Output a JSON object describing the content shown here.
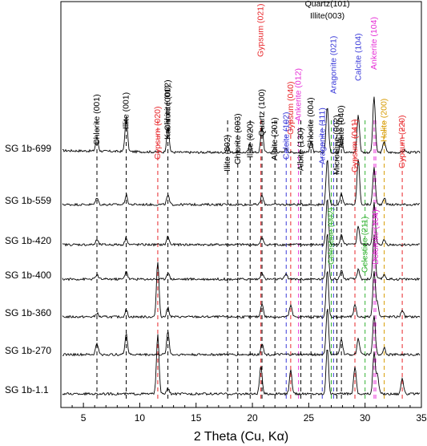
{
  "chart_data": {
    "type": "line",
    "title": "",
    "xlabel": "2 Theta (Cu, Kα)",
    "ylabel": "",
    "xlim": [
      3,
      35
    ],
    "xticks": [
      5,
      10,
      15,
      20,
      25,
      30,
      35
    ],
    "series": [
      {
        "name": "SG 1b-699",
        "peaks": [
          [
            6.2,
            0.3
          ],
          [
            8.8,
            0.75
          ],
          [
            12.5,
            0.55
          ],
          [
            17.8,
            0.12
          ],
          [
            19.8,
            0.18
          ],
          [
            20.85,
            0.55
          ],
          [
            22.0,
            0.12
          ],
          [
            23.0,
            0.1
          ],
          [
            25.2,
            0.25
          ],
          [
            26.65,
            1.0
          ],
          [
            27.9,
            0.35
          ],
          [
            29.4,
            0.8
          ],
          [
            30.8,
            1.2
          ],
          [
            31.7,
            0.25
          ],
          [
            33.5,
            0.05
          ]
        ]
      },
      {
        "name": "SG 1b-559",
        "peaks": [
          [
            6.2,
            0.15
          ],
          [
            8.8,
            0.2
          ],
          [
            12.5,
            0.2
          ],
          [
            20.85,
            0.2
          ],
          [
            26.65,
            1.0
          ],
          [
            27.9,
            0.25
          ],
          [
            29.4,
            1.0
          ],
          [
            30.8,
            0.8
          ],
          [
            31.7,
            0.15
          ]
        ]
      },
      {
        "name": "SG 1b-420",
        "peaks": [
          [
            6.2,
            0.1
          ],
          [
            8.8,
            0.15
          ],
          [
            12.5,
            0.18
          ],
          [
            20.85,
            0.15
          ],
          [
            26.65,
            1.0
          ],
          [
            27.9,
            0.2
          ],
          [
            29.4,
            0.4
          ],
          [
            30.8,
            0.9
          ],
          [
            31.7,
            0.1
          ]
        ]
      },
      {
        "name": "SG 1b-400",
        "peaks": [
          [
            6.2,
            0.1
          ],
          [
            8.8,
            0.18
          ],
          [
            12.5,
            0.15
          ],
          [
            20.85,
            0.15
          ],
          [
            23.0,
            0.12
          ],
          [
            26.65,
            1.0
          ],
          [
            27.9,
            0.2
          ],
          [
            29.4,
            0.2
          ],
          [
            30.8,
            0.95
          ],
          [
            31.7,
            0.1
          ]
        ]
      },
      {
        "name": "SG 1b-360",
        "peaks": [
          [
            6.2,
            0.08
          ],
          [
            8.8,
            0.15
          ],
          [
            11.6,
            1.2
          ],
          [
            12.5,
            0.2
          ],
          [
            20.85,
            0.3
          ],
          [
            23.4,
            0.25
          ],
          [
            26.65,
            1.0
          ],
          [
            29.1,
            0.25
          ],
          [
            30.8,
            1.0
          ],
          [
            31.1,
            0.3
          ],
          [
            33.3,
            0.15
          ]
        ]
      },
      {
        "name": "SG 1b-270",
        "peaks": [
          [
            6.2,
            0.25
          ],
          [
            8.8,
            0.45
          ],
          [
            12.5,
            0.5
          ],
          [
            20.85,
            0.25
          ],
          [
            26.65,
            1.0
          ],
          [
            27.9,
            0.35
          ],
          [
            29.4,
            0.35
          ],
          [
            30.8,
            0.85
          ],
          [
            31.7,
            0.15
          ]
        ]
      },
      {
        "name": "SG 1b-1.1",
        "peaks": [
          [
            11.6,
            1.3
          ],
          [
            12.5,
            0.12
          ],
          [
            20.75,
            0.6
          ],
          [
            23.4,
            0.5
          ],
          [
            26.65,
            1.0
          ],
          [
            29.1,
            0.6
          ],
          [
            30.8,
            0.9
          ],
          [
            31.1,
            0.4
          ],
          [
            33.3,
            0.35
          ]
        ]
      }
    ],
    "peak_labels": [
      {
        "text": "Chlorite (001)",
        "two_theta": 6.2,
        "color": "#000000"
      },
      {
        "text": "Illite (001)",
        "two_theta": 8.8,
        "color": "#000000"
      },
      {
        "text": "Gypsum (020)",
        "two_theta": 11.6,
        "color": "#e8262a"
      },
      {
        "text": "Chlorite (002)",
        "two_theta": 12.5,
        "color": "#000000"
      },
      {
        "text": "Kaolinite (001)",
        "two_theta": 12.5,
        "color": "#000000"
      },
      {
        "text": "Illite (002)",
        "two_theta": 17.8,
        "color": "#000000"
      },
      {
        "text": "Chlorite (003)",
        "two_theta": 18.7,
        "color": "#000000"
      },
      {
        "text": "Illite (020)",
        "two_theta": 19.8,
        "color": "#000000"
      },
      {
        "text": "Quartz (100)",
        "two_theta": 20.85,
        "color": "#000000"
      },
      {
        "text": "Gypsum (021)",
        "two_theta": 20.75,
        "color": "#e8262a"
      },
      {
        "text": "Albite (201)",
        "two_theta": 22.0,
        "color": "#000000"
      },
      {
        "text": "Calcite (102)",
        "two_theta": 23.0,
        "color": "#3b3bd9"
      },
      {
        "text": "Gypsum (040)",
        "two_theta": 23.4,
        "color": "#e8262a"
      },
      {
        "text": "Ankerite (012)",
        "two_theta": 24.1,
        "color": "#e62fd6"
      },
      {
        "text": "Albite (130)",
        "two_theta": 24.3,
        "color": "#000000"
      },
      {
        "text": "Chlorite (004)",
        "two_theta": 25.2,
        "color": "#000000"
      },
      {
        "text": "Aragonite (111)",
        "two_theta": 26.2,
        "color": "#3b3bd9"
      },
      {
        "text": "Quartz(101)",
        "two_theta": 26.65,
        "color": "#000000"
      },
      {
        "text": "Illite(003)",
        "two_theta": 26.65,
        "color": "#000000"
      },
      {
        "text": "Aragonite (021)",
        "two_theta": 27.2,
        "color": "#3b3bd9"
      },
      {
        "text": "Microcline (002)",
        "two_theta": 27.5,
        "color": "#000000"
      },
      {
        "text": "Albite (040)",
        "two_theta": 27.9,
        "color": "#000000"
      },
      {
        "text": "Gypsum (041)",
        "two_theta": 29.1,
        "color": "#e8262a"
      },
      {
        "text": "Calcite (104)",
        "two_theta": 29.4,
        "color": "#3b3bd9"
      },
      {
        "text": "Ankerite (104)",
        "two_theta": 30.8,
        "color": "#e62fd6"
      },
      {
        "text": "Halite (200)",
        "two_theta": 31.7,
        "color": "#d79b00"
      },
      {
        "text": "Gypsum (220)",
        "two_theta": 33.3,
        "color": "#e8262a"
      },
      {
        "text": "Celestine (002)",
        "two_theta": 27.0,
        "color": "#33b233"
      },
      {
        "text": "Celestine (211)",
        "two_theta": 30.0,
        "color": "#33b233"
      },
      {
        "text": "Dolomite (104)",
        "two_theta": 30.95,
        "color": "#e62fd6"
      }
    ],
    "reference_lines": [
      {
        "two_theta": 6.2,
        "color": "#000000"
      },
      {
        "two_theta": 8.8,
        "color": "#000000"
      },
      {
        "two_theta": 11.6,
        "color": "#e8262a"
      },
      {
        "two_theta": 12.5,
        "color": "#000000"
      },
      {
        "two_theta": 17.8,
        "color": "#000000"
      },
      {
        "two_theta": 18.7,
        "color": "#000000"
      },
      {
        "two_theta": 19.8,
        "color": "#000000"
      },
      {
        "two_theta": 20.75,
        "color": "#e8262a"
      },
      {
        "two_theta": 20.85,
        "color": "#000000"
      },
      {
        "two_theta": 22.0,
        "color": "#000000"
      },
      {
        "two_theta": 23.0,
        "color": "#3b3bd9"
      },
      {
        "two_theta": 23.4,
        "color": "#e8262a"
      },
      {
        "two_theta": 24.1,
        "color": "#e62fd6"
      },
      {
        "two_theta": 24.3,
        "color": "#000000"
      },
      {
        "two_theta": 25.2,
        "color": "#000000"
      },
      {
        "two_theta": 26.2,
        "color": "#3b3bd9"
      },
      {
        "two_theta": 27.0,
        "color": "#33b233"
      },
      {
        "two_theta": 27.2,
        "color": "#3b3bd9"
      },
      {
        "two_theta": 27.5,
        "color": "#000000"
      },
      {
        "two_theta": 27.9,
        "color": "#000000"
      },
      {
        "two_theta": 29.1,
        "color": "#e8262a"
      },
      {
        "two_theta": 30.0,
        "color": "#33b233"
      },
      {
        "two_theta": 30.8,
        "color": "#e62fd6"
      },
      {
        "two_theta": 30.95,
        "color": "#e62fd6"
      },
      {
        "two_theta": 31.7,
        "color": "#d79b00"
      },
      {
        "two_theta": 33.3,
        "color": "#e8262a"
      }
    ]
  }
}
